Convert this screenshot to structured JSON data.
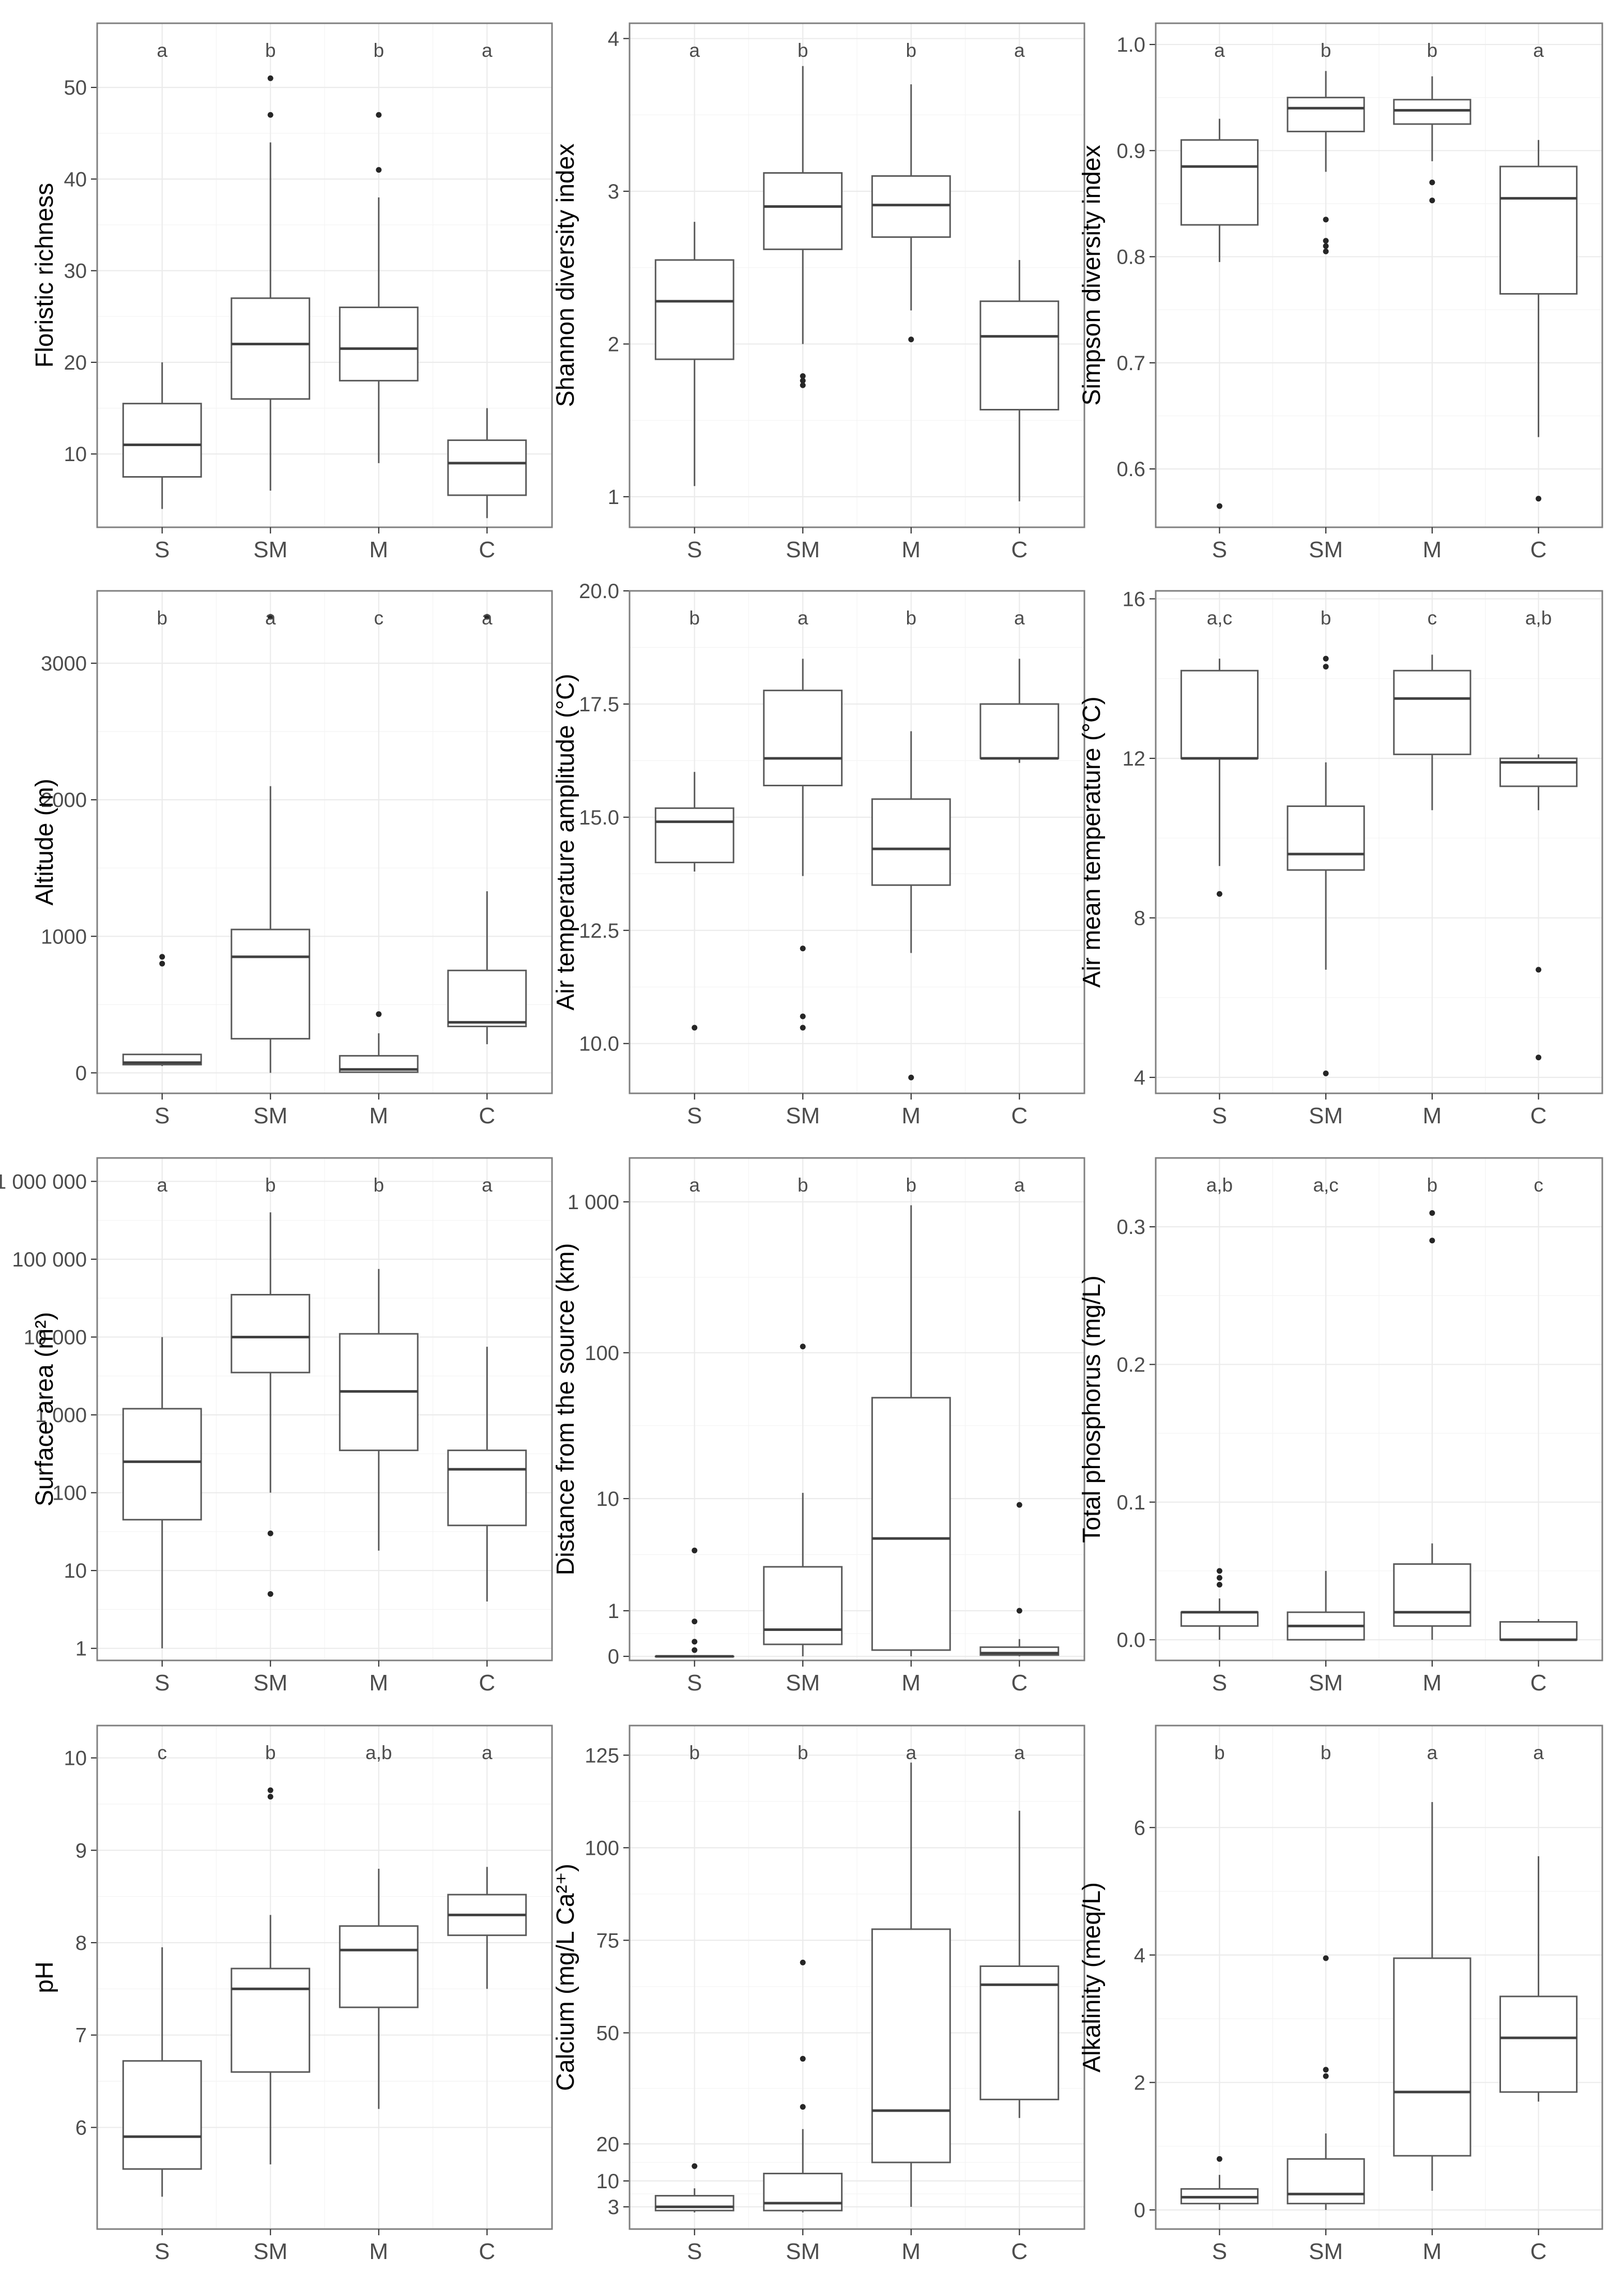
{
  "chart_data": [
    {
      "type": "box",
      "ylabel": "Floristic richness",
      "scale": "linear",
      "ylim": [
        2,
        57
      ],
      "yticks": [
        {
          "v": 10,
          "t": "10"
        },
        {
          "v": 20,
          "t": "20"
        },
        {
          "v": 30,
          "t": "30"
        },
        {
          "v": 40,
          "t": "40"
        },
        {
          "v": 50,
          "t": "50"
        }
      ],
      "groups": [
        {
          "category": "S",
          "letter": "a",
          "min": 4,
          "q1": 7.5,
          "median": 11,
          "q3": 15.5,
          "max": 20,
          "outliers": []
        },
        {
          "category": "SM",
          "letter": "b",
          "min": 6,
          "q1": 16,
          "median": 22,
          "q3": 27,
          "max": 44,
          "outliers": [
            47,
            51
          ]
        },
        {
          "category": "M",
          "letter": "b",
          "min": 9,
          "q1": 18,
          "median": 21.5,
          "q3": 26,
          "max": 38,
          "outliers": [
            41,
            47
          ]
        },
        {
          "category": "C",
          "letter": "a",
          "min": 3,
          "q1": 5.5,
          "median": 9,
          "q3": 11.5,
          "max": 15,
          "outliers": []
        }
      ]
    },
    {
      "type": "box",
      "ylabel": "Shannon diversity index",
      "scale": "linear",
      "ylim": [
        0.8,
        4.1
      ],
      "yticks": [
        {
          "v": 1,
          "t": "1"
        },
        {
          "v": 2,
          "t": "2"
        },
        {
          "v": 3,
          "t": "3"
        },
        {
          "v": 4,
          "t": "4"
        }
      ],
      "groups": [
        {
          "category": "S",
          "letter": "a",
          "min": 1.07,
          "q1": 1.9,
          "median": 2.28,
          "q3": 2.55,
          "max": 2.8,
          "outliers": []
        },
        {
          "category": "SM",
          "letter": "b",
          "min": 2.0,
          "q1": 2.62,
          "median": 2.9,
          "q3": 3.12,
          "max": 3.82,
          "outliers": [
            1.73,
            1.76,
            1.79
          ]
        },
        {
          "category": "M",
          "letter": "b",
          "min": 2.22,
          "q1": 2.7,
          "median": 2.91,
          "q3": 3.1,
          "max": 3.7,
          "outliers": [
            2.03
          ]
        },
        {
          "category": "C",
          "letter": "a",
          "min": 0.97,
          "q1": 1.57,
          "median": 2.05,
          "q3": 2.28,
          "max": 2.55,
          "outliers": []
        }
      ]
    },
    {
      "type": "box",
      "ylabel": "Simpson diversity index",
      "scale": "linear",
      "ylim": [
        0.545,
        1.02
      ],
      "yticks": [
        {
          "v": 0.6,
          "t": "0.6"
        },
        {
          "v": 0.7,
          "t": "0.7"
        },
        {
          "v": 0.8,
          "t": "0.8"
        },
        {
          "v": 0.9,
          "t": "0.9"
        },
        {
          "v": 1.0,
          "t": "1.0"
        }
      ],
      "groups": [
        {
          "category": "S",
          "letter": "a",
          "min": 0.795,
          "q1": 0.83,
          "median": 0.885,
          "q3": 0.91,
          "max": 0.93,
          "outliers": [
            0.565
          ]
        },
        {
          "category": "SM",
          "letter": "b",
          "min": 0.88,
          "q1": 0.918,
          "median": 0.94,
          "q3": 0.95,
          "max": 0.975,
          "outliers": [
            0.805,
            0.81,
            0.815,
            0.835
          ]
        },
        {
          "category": "M",
          "letter": "b",
          "min": 0.89,
          "q1": 0.925,
          "median": 0.938,
          "q3": 0.948,
          "max": 0.97,
          "outliers": [
            0.853,
            0.87
          ]
        },
        {
          "category": "C",
          "letter": "a",
          "min": 0.63,
          "q1": 0.765,
          "median": 0.855,
          "q3": 0.885,
          "max": 0.91,
          "outliers": [
            0.572
          ]
        }
      ]
    },
    {
      "type": "box",
      "ylabel": "Altitude (m)",
      "scale": "linear",
      "ylim": [
        -150,
        3530
      ],
      "yticks": [
        {
          "v": 0,
          "t": "0"
        },
        {
          "v": 1000,
          "t": "1000"
        },
        {
          "v": 2000,
          "t": "2000"
        },
        {
          "v": 3000,
          "t": "3000"
        }
      ],
      "groups": [
        {
          "category": "S",
          "letter": "b",
          "min": 50,
          "q1": 60,
          "median": 75,
          "q3": 135,
          "max": 140,
          "outliers": [
            800,
            850
          ]
        },
        {
          "category": "SM",
          "letter": "a",
          "min": 0,
          "q1": 250,
          "median": 850,
          "q3": 1050,
          "max": 2100,
          "outliers": [
            3340
          ]
        },
        {
          "category": "M",
          "letter": "c",
          "min": 0,
          "q1": 5,
          "median": 25,
          "q3": 125,
          "max": 290,
          "outliers": [
            430
          ]
        },
        {
          "category": "C",
          "letter": "a",
          "min": 210,
          "q1": 340,
          "median": 370,
          "q3": 750,
          "max": 1330,
          "outliers": [
            3340
          ]
        }
      ]
    },
    {
      "type": "box",
      "ylabel": "Air temperature amplitude (°C)",
      "scale": "linear",
      "ylim": [
        8.9,
        20.0
      ],
      "yticks": [
        {
          "v": 10.0,
          "t": "10.0"
        },
        {
          "v": 12.5,
          "t": "12.5"
        },
        {
          "v": 15.0,
          "t": "15.0"
        },
        {
          "v": 17.5,
          "t": "17.5"
        },
        {
          "v": 20.0,
          "t": "20.0"
        }
      ],
      "groups": [
        {
          "category": "S",
          "letter": "b",
          "min": 13.8,
          "q1": 14.0,
          "median": 14.9,
          "q3": 15.2,
          "max": 16.0,
          "outliers": [
            10.35
          ]
        },
        {
          "category": "SM",
          "letter": "a",
          "min": 13.7,
          "q1": 15.7,
          "median": 16.3,
          "q3": 17.8,
          "max": 18.5,
          "outliers": [
            10.35,
            10.6,
            12.1
          ]
        },
        {
          "category": "M",
          "letter": "b",
          "min": 12.0,
          "q1": 13.5,
          "median": 14.3,
          "q3": 15.4,
          "max": 16.9,
          "outliers": [
            9.25
          ]
        },
        {
          "category": "C",
          "letter": "a",
          "min": 16.2,
          "q1": 16.3,
          "median": 16.3,
          "q3": 17.5,
          "max": 18.5,
          "outliers": []
        }
      ]
    },
    {
      "type": "box",
      "ylabel": "Air mean temperature (°C)",
      "scale": "linear",
      "ylim": [
        3.6,
        16.2
      ],
      "yticks": [
        {
          "v": 4,
          "t": "4"
        },
        {
          "v": 8,
          "t": "8"
        },
        {
          "v": 12,
          "t": "12"
        },
        {
          "v": 16,
          "t": "16"
        }
      ],
      "groups": [
        {
          "category": "S",
          "letter": "a,c",
          "min": 9.3,
          "q1": 12.0,
          "median": 12.0,
          "q3": 14.2,
          "max": 14.5,
          "outliers": [
            8.6
          ]
        },
        {
          "category": "SM",
          "letter": "b",
          "min": 6.7,
          "q1": 9.2,
          "median": 9.6,
          "q3": 10.8,
          "max": 11.9,
          "outliers": [
            4.1,
            14.3,
            14.5
          ]
        },
        {
          "category": "M",
          "letter": "c",
          "min": 10.7,
          "q1": 12.1,
          "median": 13.5,
          "q3": 14.2,
          "max": 14.6,
          "outliers": []
        },
        {
          "category": "C",
          "letter": "a,b",
          "min": 10.7,
          "q1": 11.3,
          "median": 11.9,
          "q3": 12.0,
          "max": 12.1,
          "outliers": [
            4.5,
            6.7
          ]
        }
      ]
    },
    {
      "type": "box",
      "ylabel": "Surface area (m²)",
      "scale": "log",
      "ylim": [
        0.7,
        2000000
      ],
      "yticks": [
        {
          "v": 1,
          "t": "1"
        },
        {
          "v": 10,
          "t": "10"
        },
        {
          "v": 100,
          "t": "100"
        },
        {
          "v": 1000,
          "t": "1 000"
        },
        {
          "v": 10000,
          "t": "10 000"
        },
        {
          "v": 100000,
          "t": "100 000"
        },
        {
          "v": 1000000,
          "t": "1 000 000"
        }
      ],
      "groups": [
        {
          "category": "S",
          "letter": "a",
          "min": 1,
          "q1": 45,
          "median": 250,
          "q3": 1200,
          "max": 10000,
          "outliers": []
        },
        {
          "category": "SM",
          "letter": "b",
          "min": 100,
          "q1": 3500,
          "median": 10000,
          "q3": 35000,
          "max": 400000,
          "outliers": [
            5,
            30
          ]
        },
        {
          "category": "M",
          "letter": "b",
          "min": 18,
          "q1": 350,
          "median": 2000,
          "q3": 11000,
          "max": 75000,
          "outliers": []
        },
        {
          "category": "C",
          "letter": "a",
          "min": 4,
          "q1": 38,
          "median": 200,
          "q3": 350,
          "max": 7500,
          "outliers": []
        }
      ]
    },
    {
      "type": "box",
      "ylabel": "Distance from the source (km)",
      "scale": "log1p",
      "ylim": [
        -0.06,
        1950
      ],
      "yticks": [
        {
          "v": 0,
          "t": "0"
        },
        {
          "v": 1,
          "t": "1"
        },
        {
          "v": 10,
          "t": "10"
        },
        {
          "v": 100,
          "t": "100"
        },
        {
          "v": 1000,
          "t": "1 000"
        }
      ],
      "groups": [
        {
          "category": "S",
          "letter": "a",
          "min": 0,
          "q1": 0,
          "median": 0,
          "q3": 0,
          "max": 0,
          "outliers": [
            0.1,
            0.25,
            0.7,
            4
          ]
        },
        {
          "category": "SM",
          "letter": "b",
          "min": 0,
          "q1": 0.2,
          "median": 0.5,
          "q3": 2.9,
          "max": 11,
          "outliers": [
            110
          ]
        },
        {
          "category": "M",
          "letter": "b",
          "min": 0,
          "q1": 0.1,
          "median": 5,
          "q3": 50,
          "max": 950,
          "outliers": []
        },
        {
          "category": "C",
          "letter": "a",
          "min": 0,
          "q1": 0.02,
          "median": 0.05,
          "q3": 0.15,
          "max": 0.3,
          "outliers": [
            1,
            9
          ]
        }
      ]
    },
    {
      "type": "box",
      "ylabel": "Total phosphorus (mg/L)",
      "scale": "linear",
      "ylim": [
        -0.015,
        0.35
      ],
      "yticks": [
        {
          "v": 0.0,
          "t": "0.0"
        },
        {
          "v": 0.1,
          "t": "0.1"
        },
        {
          "v": 0.2,
          "t": "0.2"
        },
        {
          "v": 0.3,
          "t": "0.3"
        }
      ],
      "groups": [
        {
          "category": "S",
          "letter": "a,b",
          "min": 0.0,
          "q1": 0.01,
          "median": 0.02,
          "q3": 0.02,
          "max": 0.03,
          "outliers": [
            0.04,
            0.045,
            0.05
          ]
        },
        {
          "category": "SM",
          "letter": "a,c",
          "min": 0.0,
          "q1": 0.0,
          "median": 0.01,
          "q3": 0.02,
          "max": 0.05,
          "outliers": []
        },
        {
          "category": "M",
          "letter": "b",
          "min": 0.0,
          "q1": 0.01,
          "median": 0.02,
          "q3": 0.055,
          "max": 0.07,
          "outliers": [
            0.29,
            0.31
          ]
        },
        {
          "category": "C",
          "letter": "c",
          "min": 0.0,
          "q1": 0.0,
          "median": 0.0,
          "q3": 0.013,
          "max": 0.015,
          "outliers": []
        }
      ]
    },
    {
      "type": "box",
      "ylabel": "pH",
      "scale": "linear",
      "ylim": [
        4.9,
        10.35
      ],
      "yticks": [
        {
          "v": 6,
          "t": "6"
        },
        {
          "v": 7,
          "t": "7"
        },
        {
          "v": 8,
          "t": "8"
        },
        {
          "v": 9,
          "t": "9"
        },
        {
          "v": 10,
          "t": "10"
        }
      ],
      "groups": [
        {
          "category": "S",
          "letter": "c",
          "min": 5.25,
          "q1": 5.55,
          "median": 5.9,
          "q3": 6.72,
          "max": 7.95,
          "outliers": []
        },
        {
          "category": "SM",
          "letter": "b",
          "min": 5.6,
          "q1": 6.6,
          "median": 7.5,
          "q3": 7.72,
          "max": 8.3,
          "outliers": [
            9.58,
            9.65
          ]
        },
        {
          "category": "M",
          "letter": "a,b",
          "min": 6.2,
          "q1": 7.3,
          "median": 7.92,
          "q3": 8.18,
          "max": 8.8,
          "outliers": []
        },
        {
          "category": "C",
          "letter": "a",
          "min": 7.5,
          "q1": 8.08,
          "median": 8.3,
          "q3": 8.52,
          "max": 8.82,
          "outliers": []
        }
      ]
    },
    {
      "type": "box",
      "ylabel": "Calcium (mg/L Ca²⁺)",
      "scale": "linear",
      "ylim": [
        -3,
        133
      ],
      "yticks": [
        {
          "v": 3,
          "t": "3"
        },
        {
          "v": 10,
          "t": "10"
        },
        {
          "v": 20,
          "t": "20"
        },
        {
          "v": 50,
          "t": "50"
        },
        {
          "v": 75,
          "t": "75"
        },
        {
          "v": 100,
          "t": "100"
        },
        {
          "v": 125,
          "t": "125"
        }
      ],
      "groups": [
        {
          "category": "S",
          "letter": "b",
          "min": 1.5,
          "q1": 2.0,
          "median": 3.0,
          "q3": 6.0,
          "max": 8.0,
          "outliers": [
            14
          ]
        },
        {
          "category": "SM",
          "letter": "b",
          "min": 1.5,
          "q1": 2.0,
          "median": 4.0,
          "q3": 12.0,
          "max": 24.0,
          "outliers": [
            30,
            43,
            69
          ]
        },
        {
          "category": "M",
          "letter": "a",
          "min": 3.0,
          "q1": 15.0,
          "median": 29.0,
          "q3": 78.0,
          "max": 123.0,
          "outliers": []
        },
        {
          "category": "C",
          "letter": "a",
          "min": 27.0,
          "q1": 32.0,
          "median": 63.0,
          "q3": 68.0,
          "max": 110.0,
          "outliers": []
        }
      ]
    },
    {
      "type": "box",
      "ylabel": "Alkalinity (meq/L)",
      "scale": "linear",
      "ylim": [
        -0.3,
        7.6
      ],
      "yticks": [
        {
          "v": 0,
          "t": "0"
        },
        {
          "v": 2,
          "t": "2"
        },
        {
          "v": 4,
          "t": "4"
        },
        {
          "v": 6,
          "t": "6"
        }
      ],
      "groups": [
        {
          "category": "S",
          "letter": "b",
          "min": 0.0,
          "q1": 0.1,
          "median": 0.2,
          "q3": 0.33,
          "max": 0.55,
          "outliers": [
            0.8
          ]
        },
        {
          "category": "SM",
          "letter": "b",
          "min": 0.0,
          "q1": 0.1,
          "median": 0.25,
          "q3": 0.8,
          "max": 1.2,
          "outliers": [
            2.1,
            2.2,
            3.95
          ]
        },
        {
          "category": "M",
          "letter": "a",
          "min": 0.3,
          "q1": 0.85,
          "median": 1.85,
          "q3": 3.95,
          "max": 6.4,
          "outliers": []
        },
        {
          "category": "C",
          "letter": "a",
          "min": 1.7,
          "q1": 1.85,
          "median": 2.7,
          "q3": 3.35,
          "max": 5.55,
          "outliers": []
        }
      ]
    }
  ]
}
